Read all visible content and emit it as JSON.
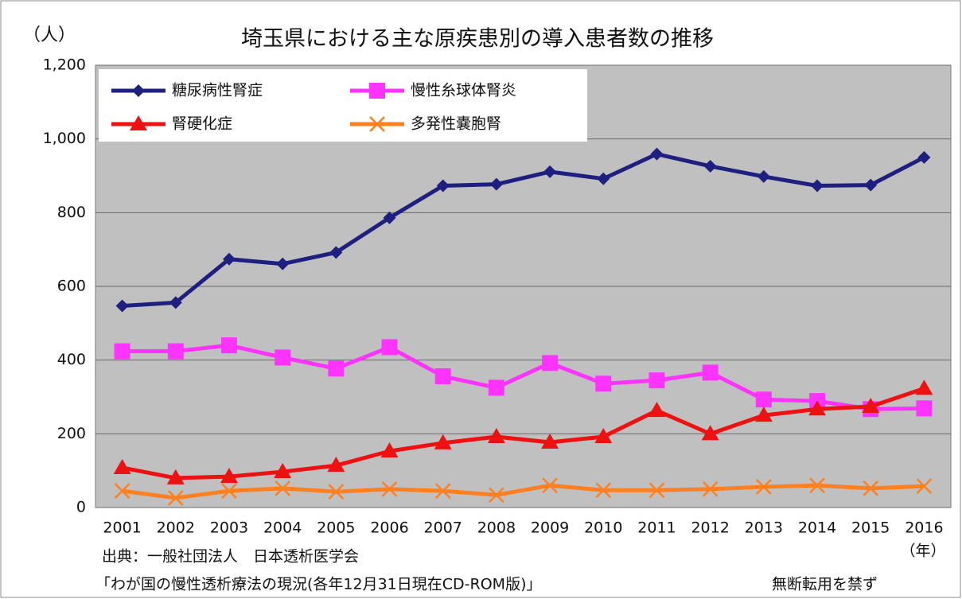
{
  "chart_data": {
    "type": "line",
    "title": "埼玉県における主な原疾患別の導入患者数の推移",
    "y_unit_label": "（人）",
    "x_unit_label": "（年）",
    "source_line1": "出典：一般社団法人　日本透析医学会",
    "source_line2": "「わが国の慢性透析療法の現況(各年12月31日現在CD-ROM版)」",
    "notice": "無断転用を禁ず",
    "categories": [
      "2001",
      "2002",
      "2003",
      "2004",
      "2005",
      "2006",
      "2007",
      "2008",
      "2009",
      "2010",
      "2011",
      "2012",
      "2013",
      "2014",
      "2015",
      "2016"
    ],
    "ylim": [
      0,
      1200
    ],
    "yticks": [
      0,
      200,
      400,
      600,
      800,
      {
        "value": 1000,
        "label": "1,000"
      },
      {
        "value": 1200,
        "label": "1,200"
      }
    ],
    "grid": true,
    "legend_position": "upper-left",
    "series": [
      {
        "name": "糖尿病性腎症",
        "color": "#1f1f80",
        "marker": "diamond",
        "values": [
          547,
          556,
          674,
          661,
          692,
          786,
          873,
          877,
          911,
          892,
          959,
          926,
          898,
          873,
          875,
          950
        ]
      },
      {
        "name": "慢性糸球体腎炎",
        "color": "#ff33ff",
        "marker": "square",
        "values": [
          424,
          424,
          440,
          407,
          377,
          435,
          356,
          325,
          392,
          336,
          345,
          366,
          293,
          289,
          267,
          269
        ]
      },
      {
        "name": "腎硬化症",
        "color": "#ee1111",
        "marker": "triangle",
        "values": [
          108,
          80,
          84,
          97,
          114,
          153,
          175,
          192,
          177,
          192,
          263,
          200,
          250,
          267,
          274,
          323
        ]
      },
      {
        "name": "多発性嚢胞腎",
        "color": "#ff8020",
        "marker": "cross",
        "values": [
          45,
          26,
          45,
          52,
          43,
          50,
          45,
          34,
          60,
          47,
          47,
          50,
          56,
          60,
          52,
          58
        ]
      }
    ]
  }
}
